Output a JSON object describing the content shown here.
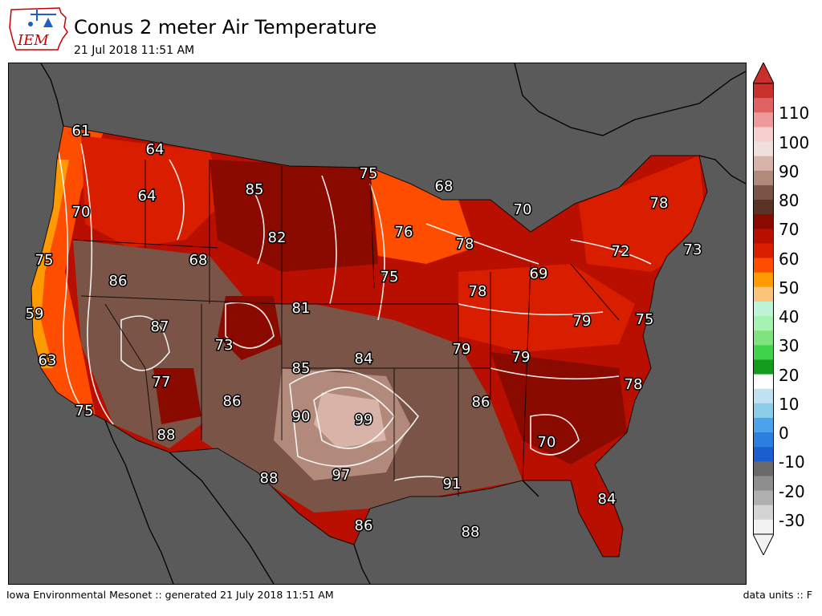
{
  "header": {
    "logo_text": "IEM",
    "title": "Conus 2 meter Air Temperature",
    "timestamp": "21 Jul 2018 11:51 AM"
  },
  "footer": {
    "left": "Iowa Environmental Mesonet :: generated 21 July 2018 11:51 AM",
    "right": "data units :: F"
  },
  "legend": {
    "tick_labels": [
      "110",
      "100",
      "90",
      "80",
      "70",
      "60",
      "50",
      "40",
      "30",
      "20",
      "10",
      "0",
      "-10",
      "-20",
      "-30"
    ],
    "bands": [
      {
        "max": 120,
        "color": "#c9302c"
      },
      {
        "max": 115,
        "color": "#e06262"
      },
      {
        "max": 110,
        "color": "#ef9a9a"
      },
      {
        "max": 105,
        "color": "#f6cfcf"
      },
      {
        "max": 100,
        "color": "#efe0db"
      },
      {
        "max": 95,
        "color": "#d8b3a8"
      },
      {
        "max": 90,
        "color": "#b28a7c"
      },
      {
        "max": 85,
        "color": "#7a5447"
      },
      {
        "max": 80,
        "color": "#5b3226"
      },
      {
        "max": 75,
        "color": "#8a0a00"
      },
      {
        "max": 70,
        "color": "#b80f00"
      },
      {
        "max": 65,
        "color": "#d91e00"
      },
      {
        "max": 60,
        "color": "#ff4d00"
      },
      {
        "max": 55,
        "color": "#ff9a00"
      },
      {
        "max": 50,
        "color": "#fcc47a"
      },
      {
        "max": 45,
        "color": "#bff4d8"
      },
      {
        "max": 40,
        "color": "#a5f2b3"
      },
      {
        "max": 35,
        "color": "#7fe37f"
      },
      {
        "max": 30,
        "color": "#3fd44a"
      },
      {
        "max": 25,
        "color": "#119c1e"
      },
      {
        "max": 20,
        "color": "#ffffff"
      },
      {
        "max": 15,
        "color": "#bfe3f3"
      },
      {
        "max": 10,
        "color": "#8bcde8"
      },
      {
        "max": 5,
        "color": "#4ba3ee"
      },
      {
        "max": 0,
        "color": "#2a7fe0"
      },
      {
        "max": -5,
        "color": "#1a5fd0"
      },
      {
        "max": -10,
        "color": "#6a6a6a"
      },
      {
        "max": -15,
        "color": "#8e8e8e"
      },
      {
        "max": -20,
        "color": "#b0b0b0"
      },
      {
        "max": -25,
        "color": "#d4d4d4"
      },
      {
        "max": -30,
        "color": "#f2f2f2"
      }
    ]
  },
  "map_data": {
    "type": "map",
    "background_color": "#5a5a5a",
    "station_values": [
      "61",
      "64",
      "64",
      "70",
      "75",
      "59",
      "63",
      "75",
      "88",
      "85",
      "82",
      "68",
      "86",
      "87",
      "73",
      "77",
      "86",
      "75",
      "76",
      "68",
      "70",
      "78",
      "75",
      "81",
      "85",
      "84",
      "90",
      "99",
      "97",
      "88",
      "86",
      "91",
      "88",
      "78",
      "72",
      "73",
      "69",
      "78",
      "79",
      "75",
      "79",
      "79",
      "86",
      "70",
      "78",
      "84"
    ]
  }
}
